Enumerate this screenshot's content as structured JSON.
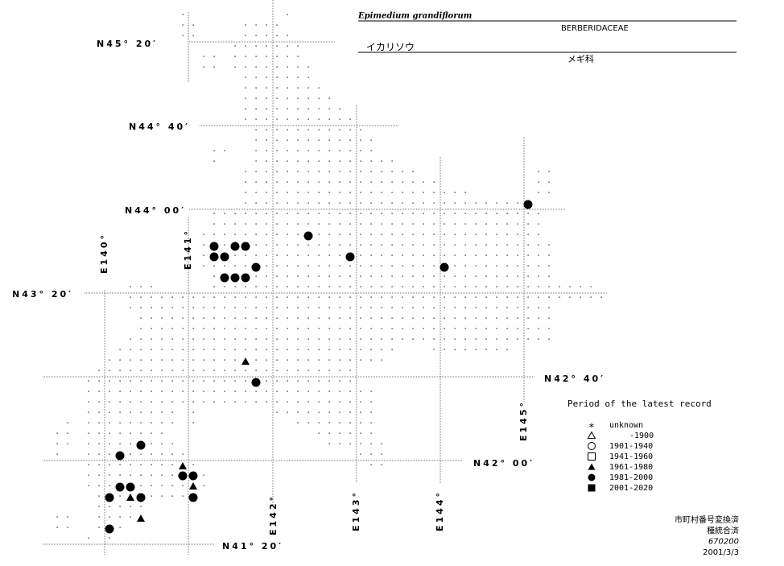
{
  "header": {
    "title": "Epimedium grandiflorum",
    "family": "BERBERIDACEAE",
    "japanese_name": "イカリソウ",
    "japanese_family": "メギ科"
  },
  "latitude_labels": [
    "N45° 20′",
    "N44° 40′",
    "N44° 00′",
    "N43° 20′",
    "N42° 40′",
    "N42° 00′",
    "N41° 20′"
  ],
  "longitude_labels": [
    "E140°",
    "E141°",
    "E142°",
    "E143°",
    "E144°",
    "E145°"
  ],
  "legend": {
    "title": "Period of the latest record",
    "items": [
      "unknown",
      "-1900",
      "1901-1940",
      "1941-1960",
      "1961-1980",
      "1981-2000",
      "2001-2020"
    ]
  },
  "footer": {
    "lines": [
      "市町村番号変換済",
      "種統合済",
      "670200",
      "2001/3/3"
    ]
  }
}
